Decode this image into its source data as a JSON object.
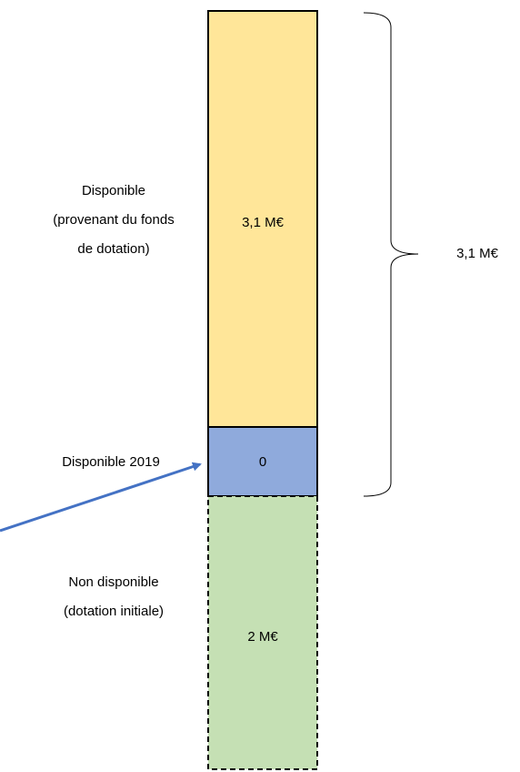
{
  "segments": [
    {
      "label": [
        "Disponible",
        "(provenant du fonds",
        "de dotation)"
      ],
      "value": "3,1 M€"
    },
    {
      "label": [
        "Disponible 2019"
      ],
      "value": "0"
    },
    {
      "label": [
        "Non disponible",
        "(dotation initiale)"
      ],
      "value": "2 M€"
    }
  ],
  "brace": {
    "label": "3,1 M€"
  }
}
